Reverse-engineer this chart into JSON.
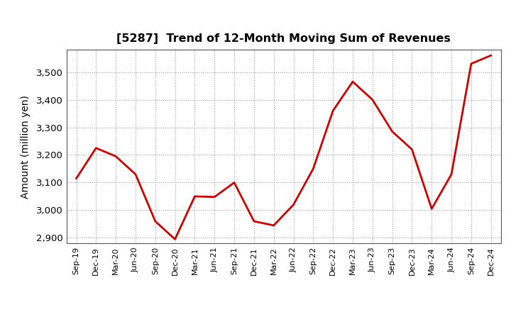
{
  "title": "[5287]  Trend of 12-Month Moving Sum of Revenues",
  "ylabel": "Amount (million yen)",
  "line_color": "#cc0000",
  "line_width": 2.0,
  "background_color": "#ffffff",
  "grid_color": "#999999",
  "ylim": [
    2880,
    3580
  ],
  "yticks": [
    2900,
    3000,
    3100,
    3200,
    3300,
    3400,
    3500
  ],
  "x_labels": [
    "Sep-19",
    "Dec-19",
    "Mar-20",
    "Jun-20",
    "Sep-20",
    "Dec-20",
    "Mar-21",
    "Jun-21",
    "Sep-21",
    "Dec-21",
    "Mar-22",
    "Jun-22",
    "Sep-22",
    "Dec-22",
    "Mar-23",
    "Jun-23",
    "Sep-23",
    "Dec-23",
    "Mar-24",
    "Jun-24",
    "Sep-24",
    "Dec-24"
  ],
  "values": [
    3115,
    3225,
    3195,
    3130,
    2960,
    2895,
    3050,
    3048,
    3100,
    2960,
    2945,
    3020,
    3150,
    3360,
    3465,
    3400,
    3285,
    3220,
    3005,
    3130,
    3530,
    3560
  ]
}
